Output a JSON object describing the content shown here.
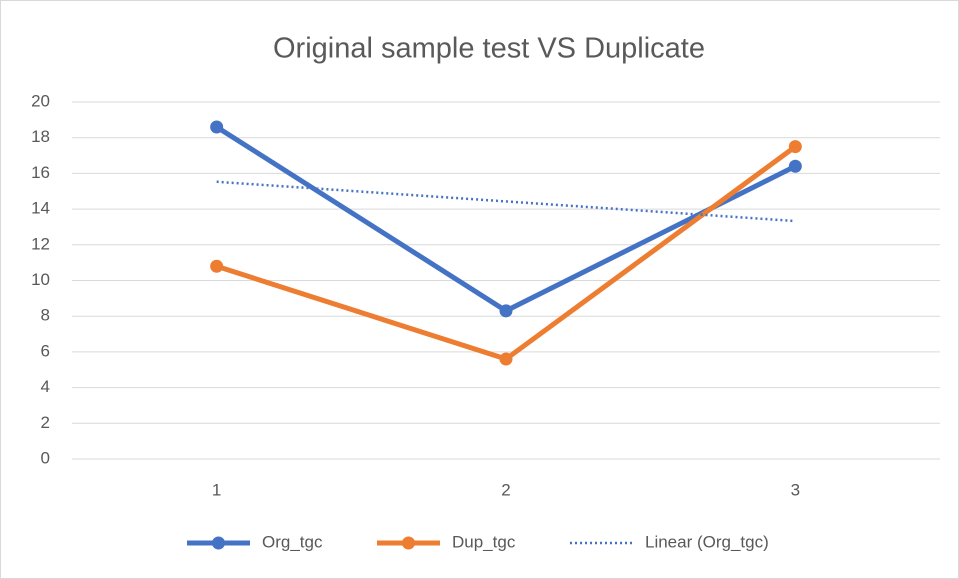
{
  "chart_data": {
    "type": "line",
    "title": "Original sample test VS Duplicate",
    "categories": [
      "1",
      "2",
      "3"
    ],
    "series": [
      {
        "name": "Org_tgc",
        "color": "#4472c4",
        "values": [
          18.6,
          8.3,
          16.4
        ],
        "marker": true,
        "line_style": "solid"
      },
      {
        "name": "Dup_tgc",
        "color": "#ed7d31",
        "values": [
          10.8,
          5.6,
          17.5
        ],
        "marker": true,
        "line_style": "solid"
      },
      {
        "name": "Linear (Org_tgc)",
        "color": "#4472c4",
        "values": [
          15.53,
          14.43,
          13.33
        ],
        "marker": false,
        "line_style": "dotted"
      }
    ],
    "ylim": [
      0,
      20
    ],
    "yticks": [
      0,
      2,
      4,
      6,
      8,
      10,
      12,
      14,
      16,
      18,
      20
    ],
    "grid": true,
    "legend": "bottom"
  }
}
